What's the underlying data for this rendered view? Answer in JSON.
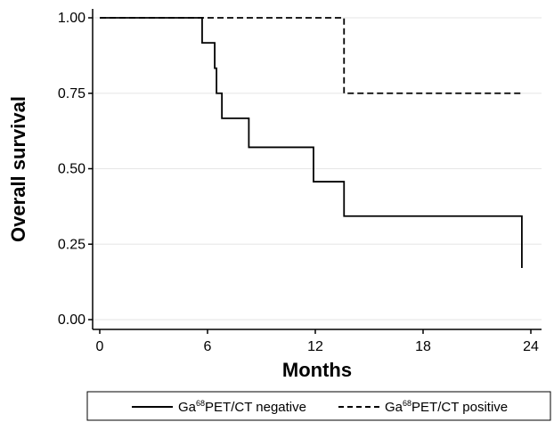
{
  "chart_data": {
    "type": "line",
    "subtype": "kaplan-meier step",
    "title": "",
    "xlabel": "Months",
    "ylabel": "Overall survival",
    "xlim": [
      0,
      24
    ],
    "ylim": [
      0,
      1
    ],
    "x_ticks": [
      "0",
      "6",
      "12",
      "18",
      "24"
    ],
    "x_tick_values": [
      0,
      6,
      12,
      18,
      24
    ],
    "y_ticks": [
      "0.00",
      "0.25",
      "0.50",
      "0.75",
      "1.00"
    ],
    "y_tick_values": [
      0,
      0.25,
      0.5,
      0.75,
      1.0
    ],
    "grid": "horizontal",
    "legend_position": "bottom",
    "series": [
      {
        "name": "Ga68PET/CT negative",
        "name_prefix": "Ga",
        "name_sup": "68",
        "name_suffix": "PET/CT negative",
        "line_style": "solid",
        "color": "#000000",
        "points": [
          [
            0,
            1.0
          ],
          [
            5.7,
            0.917
          ],
          [
            6.4,
            0.833
          ],
          [
            6.5,
            0.75
          ],
          [
            6.8,
            0.667
          ],
          [
            8.3,
            0.571
          ],
          [
            11.9,
            0.457
          ],
          [
            13.6,
            0.343
          ],
          [
            23.5,
            0.343
          ],
          [
            23.5,
            0.171
          ]
        ]
      },
      {
        "name": "Ga68PET/CT positive",
        "name_prefix": "Ga",
        "name_sup": "68",
        "name_suffix": "PET/CT positive",
        "line_style": "dashed",
        "color": "#000000",
        "points": [
          [
            0,
            1.0
          ],
          [
            13.6,
            0.75
          ],
          [
            23.5,
            0.75
          ]
        ]
      }
    ]
  }
}
